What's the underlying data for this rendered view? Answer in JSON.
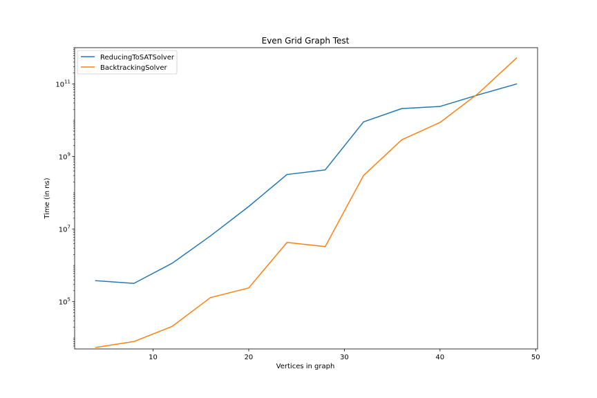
{
  "chart_data": {
    "type": "line",
    "title": "Even Grid Graph Test",
    "xlabel": "Vertices in graph",
    "ylabel": "Time (in ns)",
    "x_scale": "linear",
    "y_scale": "log",
    "xlim": [
      1.8,
      50.2
    ],
    "ylim": [
      5000.0,
      1000000000000.0
    ],
    "x_ticks": [
      10,
      20,
      30,
      40,
      50
    ],
    "y_ticks": [
      {
        "value": 100000,
        "base": "10",
        "exp": "5"
      },
      {
        "value": 10000000,
        "base": "10",
        "exp": "7"
      },
      {
        "value": 1000000000,
        "base": "10",
        "exp": "9"
      },
      {
        "value": 100000000000,
        "base": "10",
        "exp": "11"
      }
    ],
    "grid": false,
    "legend_position": "top-left",
    "x": [
      4,
      8,
      12,
      16,
      20,
      24,
      28,
      32,
      36,
      40,
      44,
      48
    ],
    "series": [
      {
        "name": "ReducingToSATSolver",
        "color": "#1f77b4",
        "values": [
          380000,
          320000,
          1150000,
          6500000,
          42000000,
          320000000,
          430000000,
          9000000000,
          21000000000,
          24000000000,
          50000000000,
          100000000000
        ]
      },
      {
        "name": "BacktrackingSolver",
        "color": "#ff7f0e",
        "values": [
          5500,
          8000,
          21000,
          130000,
          240000,
          4300000,
          3300000,
          300000000,
          2900000000,
          8700000000,
          55000000000,
          520000000000
        ]
      }
    ]
  }
}
